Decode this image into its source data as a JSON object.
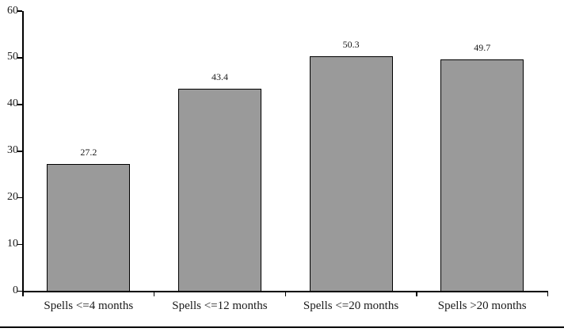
{
  "figure": {
    "background": "#ffffff",
    "bar_fill": "#9a9a9a",
    "bar_border": "#000000",
    "axis_color": "#000000",
    "text_color": "#1a1a1a"
  },
  "chart_data": {
    "type": "bar",
    "title": "",
    "xlabel": "",
    "ylabel": "",
    "categories": [
      "Spells <=4 months",
      "Spells <=12 months",
      "Spells <=20 months",
      "Spells >20 months"
    ],
    "values": [
      27.2,
      43.4,
      50.3,
      49.7
    ],
    "value_labels": [
      "27.2",
      "43.4",
      "50.3",
      "49.7"
    ],
    "ylim": [
      0,
      60
    ],
    "yticks": [
      0,
      10,
      20,
      30,
      40,
      50,
      60
    ],
    "ytick_labels": [
      "0",
      "10",
      "20",
      "30",
      "40",
      "50",
      "60"
    ],
    "grid": false,
    "legend": "none"
  }
}
